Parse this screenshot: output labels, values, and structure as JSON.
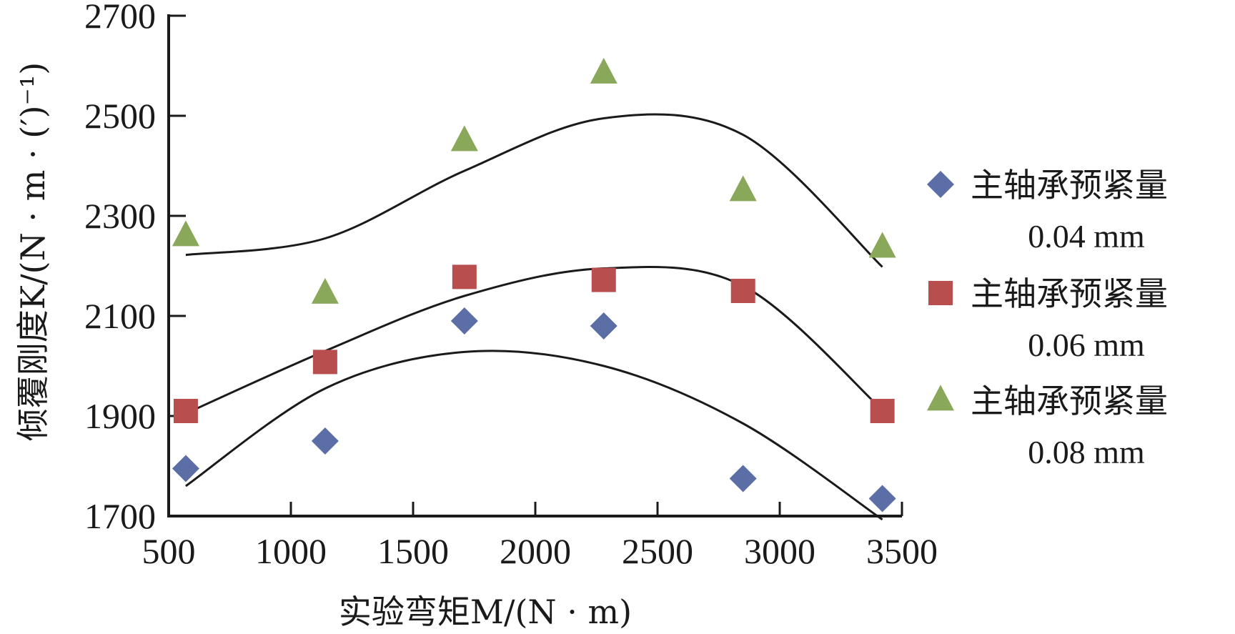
{
  "chart_data": {
    "type": "scatter",
    "xlabel": "实验弯矩M/(N · m)",
    "ylabel": "倾覆刚度K/(N · m · (′)⁻¹)",
    "xlim": [
      500,
      3500
    ],
    "ylim": [
      1700,
      2700
    ],
    "x_ticks": [
      "500",
      "1000",
      "1500",
      "2000",
      "2500",
      "3000",
      "3500"
    ],
    "y_ticks": [
      "1700",
      "1900",
      "2100",
      "2300",
      "2500",
      "2700"
    ],
    "x": [
      570,
      1140,
      1710,
      2280,
      2850,
      3420
    ],
    "legend_position": "right",
    "grid": false,
    "series": [
      {
        "name": "主轴承预紧量",
        "name_sub": "0.04 mm",
        "marker": "diamond",
        "color": "#5b6ea6",
        "values": [
          1795,
          1850,
          2090,
          2080,
          1775,
          1735
        ],
        "trend": [
          [
            570,
            1760
          ],
          [
            1140,
            1955
          ],
          [
            1710,
            2028
          ],
          [
            2280,
            2000
          ],
          [
            2850,
            1885
          ],
          [
            3420,
            1693
          ]
        ]
      },
      {
        "name": "主轴承预紧量",
        "name_sub": "0.06 mm",
        "marker": "square",
        "color": "#b94e4e",
        "values": [
          1910,
          2008,
          2178,
          2172,
          2150,
          1910
        ],
        "trend": [
          [
            570,
            1905
          ],
          [
            1140,
            2030
          ],
          [
            1710,
            2140
          ],
          [
            2280,
            2195
          ],
          [
            2850,
            2160
          ],
          [
            3420,
            1912
          ]
        ]
      },
      {
        "name": "主轴承预紧量",
        "name_sub": "0.08 mm",
        "marker": "triangle",
        "color": "#8aa85a",
        "values": [
          2260,
          2145,
          2450,
          2585,
          2350,
          2237
        ],
        "trend": [
          [
            570,
            2222
          ],
          [
            1140,
            2255
          ],
          [
            1710,
            2390
          ],
          [
            2280,
            2495
          ],
          [
            2850,
            2462
          ],
          [
            3420,
            2198
          ]
        ]
      }
    ]
  }
}
